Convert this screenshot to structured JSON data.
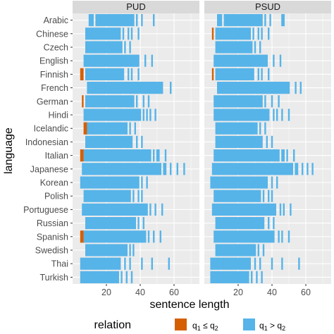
{
  "chart_data": {
    "type": "heatmap",
    "xlabel": "sentence length",
    "ylabel": "language",
    "xlim": [
      0,
      75
    ],
    "x_ticks": [
      20,
      40,
      60
    ],
    "grid": true,
    "legend": {
      "title": "relation",
      "placement": "bottom",
      "entries": [
        {
          "key": "le",
          "label_html": "q<tspan font-size='9' dy='3'>1</tspan><tspan dy='-3'> ≤ q</tspan><tspan font-size='9' dy='3'>2</tspan>",
          "text": "q1 ≤ q2",
          "color": "#D55E00"
        },
        {
          "key": "gt",
          "label_html": "q<tspan font-size='9' dy='3'>1</tspan><tspan dy='-3'> &gt; q</tspan><tspan font-size='9' dy='3'>2</tspan>",
          "text": "q1 > q2",
          "color": "#56B4E9"
        }
      ]
    },
    "languages": [
      "Arabic",
      "Chinese",
      "Czech",
      "English",
      "Finnish",
      "French",
      "German",
      "Hindi",
      "Icelandic",
      "Indonesian",
      "Italian",
      "Japanese",
      "Korean",
      "Polish",
      "Portuguese",
      "Russian",
      "Spanish",
      "Swedish",
      "Thai",
      "Turkish"
    ],
    "panels": [
      {
        "name": "PUD",
        "rows": [
          {
            "language": "Arabic",
            "gt": [
              [
                10,
                12
              ],
              [
                14,
                36
              ],
              [
                38,
                38
              ],
              [
                41,
                41
              ],
              [
                48,
                48
              ]
            ],
            "le": []
          },
          {
            "language": "Chinese",
            "gt": [
              [
                8,
                28
              ],
              [
                30,
                30
              ],
              [
                33,
                33
              ],
              [
                35,
                35
              ],
              [
                39,
                39
              ]
            ],
            "le": []
          },
          {
            "language": "Czech",
            "gt": [
              [
                8,
                29
              ],
              [
                31,
                31
              ],
              [
                34,
                34
              ]
            ],
            "le": []
          },
          {
            "language": "English",
            "gt": [
              [
                7,
                39
              ],
              [
                43,
                43
              ],
              [
                47,
                47
              ]
            ],
            "le": []
          },
          {
            "language": "Finnish",
            "gt": [
              [
                8,
                30
              ],
              [
                33,
                33
              ],
              [
                35,
                35
              ],
              [
                39,
                39
              ]
            ],
            "le": [
              [
                5,
                6
              ]
            ]
          },
          {
            "language": "French",
            "gt": [
              [
                9,
                53
              ],
              [
                58,
                58
              ]
            ],
            "le": []
          },
          {
            "language": "German",
            "gt": [
              [
                8,
                36
              ],
              [
                38,
                38
              ],
              [
                42,
                42
              ],
              [
                45,
                45
              ]
            ],
            "le": [
              [
                6,
                6
              ]
            ]
          },
          {
            "language": "Hindi",
            "gt": [
              [
                7,
                40
              ],
              [
                42,
                42
              ],
              [
                44,
                44
              ],
              [
                46,
                46
              ],
              [
                49,
                49
              ]
            ],
            "le": []
          },
          {
            "language": "Icelandic",
            "gt": [
              [
                8,
                32
              ],
              [
                34,
                34
              ],
              [
                37,
                37
              ]
            ],
            "le": [
              [
                7,
                8
              ]
            ]
          },
          {
            "language": "Indonesian",
            "gt": [
              [
                8,
                35
              ],
              [
                38,
                38
              ],
              [
                41,
                41
              ]
            ],
            "le": []
          },
          {
            "language": "Italian",
            "gt": [
              [
                7,
                46
              ],
              [
                48,
                48
              ],
              [
                50,
                51
              ],
              [
                55,
                55
              ]
            ],
            "le": [
              [
                5,
                6
              ]
            ]
          },
          {
            "language": "Japanese",
            "gt": [
              [
                6,
                52
              ],
              [
                54,
                55
              ],
              [
                58,
                58
              ],
              [
                62,
                62
              ],
              [
                66,
                66
              ]
            ],
            "le": []
          },
          {
            "language": "Korean",
            "gt": [
              [
                5,
                39
              ],
              [
                41,
                41
              ],
              [
                44,
                44
              ]
            ],
            "le": []
          },
          {
            "language": "Polish",
            "gt": [
              [
                7,
                34
              ],
              [
                36,
                36
              ],
              [
                39,
                39
              ],
              [
                41,
                41
              ]
            ],
            "le": []
          },
          {
            "language": "Portuguese",
            "gt": [
              [
                6,
                44
              ],
              [
                46,
                46
              ],
              [
                49,
                49
              ],
              [
                53,
                53
              ]
            ],
            "le": []
          },
          {
            "language": "Russian",
            "gt": [
              [
                8,
                37
              ],
              [
                39,
                39
              ],
              [
                42,
                42
              ]
            ],
            "le": []
          },
          {
            "language": "Spanish",
            "gt": [
              [
                7,
                43
              ],
              [
                45,
                45
              ],
              [
                48,
                48
              ],
              [
                52,
                52
              ]
            ],
            "le": [
              [
                5,
                6
              ]
            ]
          },
          {
            "language": "Swedish",
            "gt": [
              [
                8,
                32
              ],
              [
                34,
                34
              ],
              [
                36,
                36
              ]
            ],
            "le": []
          },
          {
            "language": "Thai",
            "gt": [
              [
                5,
                28
              ],
              [
                31,
                31
              ],
              [
                34,
                34
              ],
              [
                41,
                41
              ],
              [
                47,
                47
              ],
              [
                57,
                57
              ]
            ],
            "le": []
          },
          {
            "language": "Turkish",
            "gt": [
              [
                5,
                27
              ],
              [
                29,
                29
              ],
              [
                32,
                32
              ],
              [
                35,
                35
              ]
            ],
            "le": []
          }
        ]
      },
      {
        "name": "PSUD",
        "rows": [
          {
            "language": "Arabic",
            "gt": [
              [
                8,
                10
              ],
              [
                12,
                34
              ],
              [
                36,
                36
              ],
              [
                39,
                39
              ],
              [
                46,
                47
              ]
            ],
            "le": []
          },
          {
            "language": "Chinese",
            "gt": [
              [
                7,
                27
              ],
              [
                29,
                29
              ],
              [
                32,
                32
              ],
              [
                34,
                34
              ],
              [
                38,
                38
              ]
            ],
            "le": [
              [
                5,
                5
              ]
            ]
          },
          {
            "language": "Czech",
            "gt": [
              [
                7,
                28
              ],
              [
                30,
                30
              ],
              [
                33,
                33
              ]
            ],
            "le": []
          },
          {
            "language": "English",
            "gt": [
              [
                6,
                37
              ],
              [
                41,
                41
              ],
              [
                45,
                45
              ]
            ],
            "le": []
          },
          {
            "language": "Finnish",
            "gt": [
              [
                7,
                29
              ],
              [
                32,
                32
              ],
              [
                34,
                34
              ],
              [
                38,
                38
              ]
            ],
            "le": [
              [
                5,
                5
              ]
            ]
          },
          {
            "language": "French",
            "gt": [
              [
                8,
                50
              ],
              [
                54,
                54
              ],
              [
                57,
                57
              ]
            ],
            "le": []
          },
          {
            "language": "German",
            "gt": [
              [
                6,
                34
              ],
              [
                36,
                36
              ],
              [
                40,
                40
              ],
              [
                44,
                44
              ]
            ],
            "le": []
          },
          {
            "language": "Hindi",
            "gt": [
              [
                6,
                38
              ],
              [
                41,
                41
              ],
              [
                43,
                43
              ],
              [
                46,
                46
              ],
              [
                50,
                50
              ]
            ],
            "le": []
          },
          {
            "language": "Icelandic",
            "gt": [
              [
                7,
                31
              ],
              [
                33,
                33
              ],
              [
                36,
                36
              ]
            ],
            "le": []
          },
          {
            "language": "Indonesian",
            "gt": [
              [
                7,
                34
              ],
              [
                37,
                37
              ],
              [
                40,
                40
              ]
            ],
            "le": []
          },
          {
            "language": "Italian",
            "gt": [
              [
                6,
                44
              ],
              [
                46,
                47
              ],
              [
                49,
                49
              ],
              [
                53,
                53
              ]
            ],
            "le": []
          },
          {
            "language": "Japanese",
            "gt": [
              [
                5,
                52
              ],
              [
                54,
                55
              ],
              [
                58,
                58
              ],
              [
                61,
                61
              ],
              [
                64,
                64
              ]
            ],
            "le": []
          },
          {
            "language": "Korean",
            "gt": [
              [
                4,
                37
              ],
              [
                40,
                40
              ],
              [
                43,
                43
              ]
            ],
            "le": []
          },
          {
            "language": "Polish",
            "gt": [
              [
                6,
                33
              ],
              [
                35,
                35
              ],
              [
                38,
                38
              ],
              [
                40,
                40
              ]
            ],
            "le": []
          },
          {
            "language": "Portuguese",
            "gt": [
              [
                5,
                42
              ],
              [
                45,
                45
              ],
              [
                47,
                47
              ],
              [
                51,
                51
              ]
            ],
            "le": []
          },
          {
            "language": "Russian",
            "gt": [
              [
                7,
                35
              ],
              [
                38,
                38
              ],
              [
                41,
                41
              ]
            ],
            "le": []
          },
          {
            "language": "Spanish",
            "gt": [
              [
                6,
                41
              ],
              [
                44,
                44
              ],
              [
                46,
                46
              ],
              [
                50,
                50
              ]
            ],
            "le": []
          },
          {
            "language": "Swedish",
            "gt": [
              [
                7,
                30
              ],
              [
                32,
                32
              ],
              [
                35,
                35
              ]
            ],
            "le": []
          },
          {
            "language": "Thai",
            "gt": [
              [
                4,
                27
              ],
              [
                30,
                30
              ],
              [
                33,
                33
              ],
              [
                40,
                40
              ],
              [
                46,
                46
              ],
              [
                56,
                56
              ]
            ],
            "le": []
          },
          {
            "language": "Turkish",
            "gt": [
              [
                4,
                26
              ],
              [
                28,
                28
              ],
              [
                31,
                31
              ],
              [
                34,
                34
              ]
            ],
            "le": []
          }
        ]
      }
    ]
  }
}
